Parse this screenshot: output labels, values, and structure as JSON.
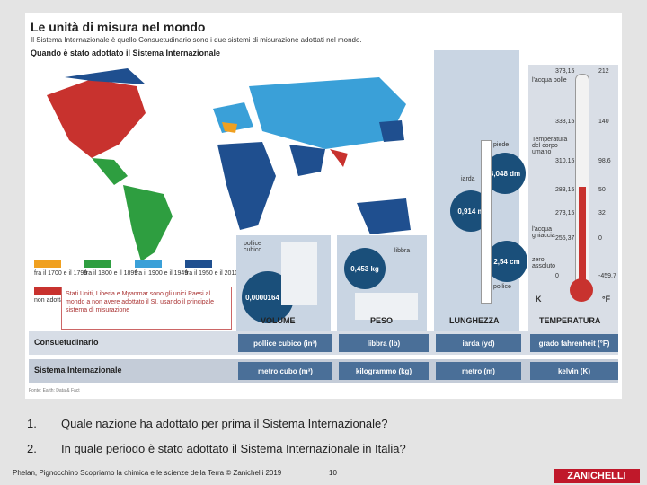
{
  "header": {
    "title": "Le unità di misura nel mondo",
    "subtitle": "Il Sistema Internazionale è quello Consuetudinario sono i due sistemi di misurazione adottati nel mondo.",
    "section": "Quando è stato adottato il Sistema Internazionale"
  },
  "legend": [
    {
      "label": "fra il 1700 e il 1799",
      "color": "#f0a020"
    },
    {
      "label": "fra il 1800 e il 1899",
      "color": "#2e9e40"
    },
    {
      "label": "fra il 1900 e il 1949",
      "color": "#3aa0d8"
    },
    {
      "label": "fra il 1950 e il 2010",
      "color": "#1f4f8f"
    }
  ],
  "not_adopted": {
    "label": "non adottato",
    "color": "#c8322e"
  },
  "note": "Stati Uniti, Liberia e Myanmar sono gli unici Paesi al mondo a non avere adottato il SI, usando il principale sistema di misurazione",
  "volume": {
    "label_top": "pollice cubico",
    "value": "0,0000164 m³",
    "heading": "VOLUME"
  },
  "peso": {
    "label_top": "libbra",
    "value": "0,453 kg",
    "heading": "PESO"
  },
  "lunghezza": {
    "piede": "piede",
    "iarda": "iarda",
    "pollice": "pollice",
    "v1": "3,048 dm",
    "v2": "0,914 m",
    "v3": "2,54 cm",
    "heading": "LUNGHEZZA"
  },
  "temperatura": {
    "heading": "TEMPERATURA",
    "K_label": "K",
    "F_label": "°F",
    "marks": [
      {
        "k": "373,15",
        "f": "212",
        "text": "l'acqua bolle"
      },
      {
        "k": "333,15",
        "f": "140",
        "text": ""
      },
      {
        "k": "310,15",
        "f": "98,6",
        "text": "Temperatura del corpo umano"
      },
      {
        "k": "283,15",
        "f": "50",
        "text": ""
      },
      {
        "k": "273,15",
        "f": "32",
        "text": "l'acqua ghiaccia"
      },
      {
        "k": "255,37",
        "f": "0",
        "text": ""
      },
      {
        "k": "0",
        "f": "-459,7",
        "text": "zero assoluto"
      }
    ]
  },
  "table": {
    "row1_label": "Consuetudinario",
    "row1": [
      "pollice cubico (in³)",
      "libbra (lb)",
      "iarda (yd)",
      "grado fahrenheit (°F)"
    ],
    "row2_label": "Sistema Internazionale",
    "row2": [
      "metro cubo (m³)",
      "kilogrammo (kg)",
      "metro (m)",
      "kelvin (K)"
    ]
  },
  "credit": "Fonte: Earth: Data & Fact",
  "questions": [
    {
      "num": "1.",
      "text": "Quale nazione ha adottato per prima il Sistema Internazionale?"
    },
    {
      "num": "2.",
      "text": "In quale periodo è stato adottato il Sistema Internazionale in Italia?"
    }
  ],
  "footer": {
    "credit": "Phelan, Pignocchino Scopriamo la chimica e le scienze della Terra © Zanichelli 2019",
    "page": "10",
    "logo": "ZANICHELLI"
  }
}
